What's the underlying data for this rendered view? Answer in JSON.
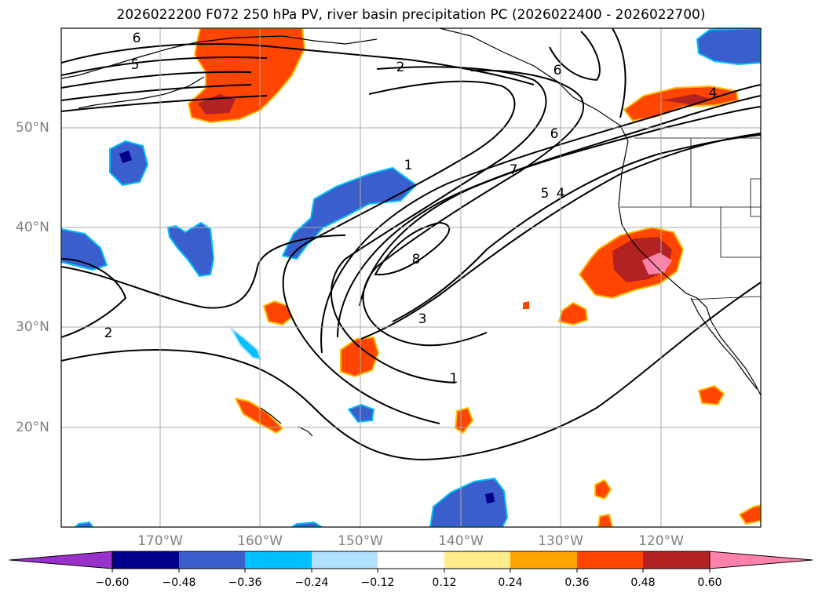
{
  "title": "2026022200 F072 250 hPa PV, river basin precipitation PC (2026022400 - 2026022700)",
  "lat_labels": [
    "50°N",
    "40°N",
    "30°N",
    "20°N"
  ],
  "lon_labels": [
    "170°W",
    "160°W",
    "150°W",
    "140°W",
    "130°W",
    "120°W"
  ],
  "contour_labels": [
    "6",
    "5",
    "2",
    "6",
    "4",
    "6",
    "1",
    "7",
    "5",
    "4",
    "8",
    "3",
    "2",
    "1"
  ],
  "colorbar": {
    "ticks": [
      "−0.60",
      "−0.48",
      "−0.36",
      "−0.24",
      "−0.12",
      "0.12",
      "0.24",
      "0.36",
      "0.48",
      "0.60"
    ],
    "colors": [
      "#9932cc",
      "#00008b",
      "#3a5fcd",
      "#00bfff",
      "#b0e2ff",
      "#ffffff",
      "#ffec8b",
      "#ffa500",
      "#ff4500",
      "#b22222",
      "#ff82ab"
    ]
  }
}
